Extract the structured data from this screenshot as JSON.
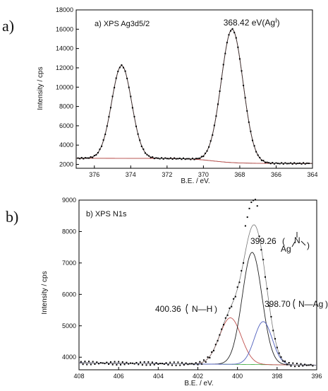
{
  "chart_data": [
    {
      "type": "line",
      "panel_label": "a)",
      "title": "a) XPS Ag3d5/2",
      "xlabel": "B.E. / eV.",
      "ylabel": "Intensity / cps",
      "xlim": [
        377,
        364
      ],
      "ylim": [
        1600,
        18000
      ],
      "x_reversed": true,
      "xticks": [
        376,
        374,
        372,
        370,
        368,
        366,
        364
      ],
      "yticks": [
        2000,
        4000,
        6000,
        8000,
        10000,
        12000,
        14000,
        16000,
        18000
      ],
      "peaks": [
        {
          "center": 374.5,
          "height": 12200,
          "width": 0.55
        },
        {
          "center": 368.42,
          "height": 16100,
          "width": 0.6
        }
      ],
      "annotations": [
        {
          "id": "ag1",
          "text": "368.42 eV(Ag",
          "superscript": "I",
          "closing": ")",
          "x": 368.9,
          "y": 16400
        }
      ],
      "series": [
        {
          "role": "experimental",
          "color": "#000000"
        },
        {
          "role": "fit",
          "color": "#333333"
        },
        {
          "role": "component",
          "color": "#c0504d"
        },
        {
          "role": "background",
          "color": "#555555"
        }
      ]
    },
    {
      "type": "line",
      "panel_label": "b)",
      "title": "b) XPS N1s",
      "xlabel": "B.E. / eV.",
      "ylabel": "Intensity / cps",
      "xlim": [
        408,
        396
      ],
      "ylim": [
        3600,
        9000
      ],
      "x_reversed": true,
      "xticks": [
        408,
        406,
        404,
        402,
        400,
        398,
        396
      ],
      "yticks": [
        4000,
        5000,
        6000,
        7000,
        8000,
        9000
      ],
      "components": [
        {
          "center": 400.36,
          "height": 5260,
          "width": 0.55,
          "color": "#c0504d"
        },
        {
          "center": 399.26,
          "height": 7350,
          "width": 0.5,
          "color": "#222222"
        },
        {
          "center": 398.7,
          "height": 5150,
          "width": 0.45,
          "color": "#4f5fbd"
        }
      ],
      "annotations": [
        {
          "id": "p1",
          "text": "400.36",
          "group": "(N–H)",
          "x": 402.8,
          "y": 5330
        },
        {
          "id": "p2",
          "text": "399.26",
          "group": "(Ag–N)",
          "x": 399.8,
          "y": 7500
        },
        {
          "id": "p3",
          "text": "398.70",
          "group": "(N–Ag)",
          "x": 399.15,
          "y": 5550
        }
      ],
      "labels": {
        "n_h": "N—H",
        "ag": "Ag",
        "n": "N",
        "n_ag": "N—Ag"
      }
    }
  ]
}
